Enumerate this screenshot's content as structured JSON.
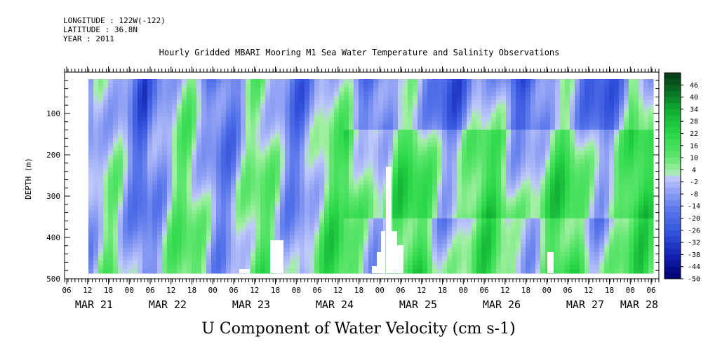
{
  "header": {
    "longitude": "LONGITUDE : 122W(-122)",
    "latitude": "LATITUDE : 36.8N",
    "year": "YEAR : 2011"
  },
  "chart_data": {
    "type": "heatmap",
    "title": "Hourly Gridded MBARI Mooring M1 Sea Water Temperature and Salinity Observations",
    "variable_label": "U Component of Water Velocity (cm s-1)",
    "ylabel": "DEPTH (m)",
    "ylim": [
      500,
      0
    ],
    "y_ticks": [
      100,
      200,
      300,
      400,
      500
    ],
    "x_hour_ticks": [
      "06",
      "12",
      "18",
      "00",
      "06",
      "12",
      "18",
      "00",
      "06",
      "12",
      "18",
      "00",
      "06",
      "12",
      "18",
      "00",
      "06",
      "12",
      "18",
      "00",
      "06",
      "12",
      "18",
      "00",
      "06",
      "12",
      "18",
      "00",
      "06"
    ],
    "x_day_labels": [
      "MAR 21",
      "MAR 22",
      "MAR 23",
      "MAR 24",
      "MAR 25",
      "MAR 26",
      "MAR 27",
      "MAR 28"
    ],
    "colorbar_ticks": [
      "46",
      "40",
      "34",
      "28",
      "22",
      "16",
      "10",
      "4",
      "-2",
      "-8",
      "-14",
      "-20",
      "-26",
      "-32",
      "-38",
      "-44",
      "-50"
    ],
    "colorbar_range": [
      -50,
      52
    ],
    "colors": {
      "strong_negative": "#00007a",
      "negative": "#5a6ee6",
      "weak_negative": "#aab4f5",
      "weak_positive": "#9bee9b",
      "positive": "#2edc43",
      "strong_positive": "#0a4d1c"
    },
    "notes_visible": "Data approx. MAR 21 12:00 to MAR 28 06:00; depth approx. 10–490 m"
  }
}
